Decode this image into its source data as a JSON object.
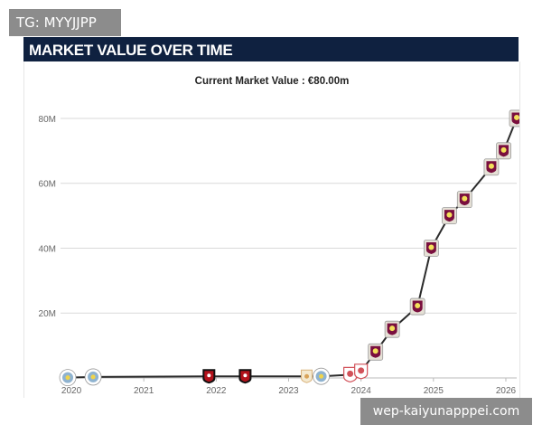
{
  "watermarks": {
    "top_left": "TG: MYYJJPP",
    "bottom_right": "wep-kaiyunapppei.com"
  },
  "header": {
    "title": "MARKET VALUE OVER TIME"
  },
  "colors": {
    "header_bg": "#0f2140",
    "line": "#2b2b2b",
    "grid": "#d9d9d9",
    "villa_badge": "#7a0f3e",
    "villa_accent": "#f3e05a",
    "city_badge": "#8fb3d0",
    "bournemouth_badge": "#b3121b",
    "middlesbrough_badge": "#d2525a"
  },
  "chart_data": {
    "type": "line",
    "title": "Current Market Value : €80.00m",
    "xlabel": "",
    "ylabel": "",
    "xlim": [
      2019.85,
      2026.15
    ],
    "ylim": [
      0,
      85
    ],
    "grid": true,
    "x_ticks": [
      "2020",
      "2021",
      "2022",
      "2023",
      "2024",
      "2025",
      "2026"
    ],
    "y_ticks": [
      {
        "value": 20,
        "label": "20M"
      },
      {
        "value": 40,
        "label": "40M"
      },
      {
        "value": 60,
        "label": "60M"
      },
      {
        "value": 80,
        "label": "80M"
      }
    ],
    "points": [
      {
        "x": 2019.95,
        "y": 0.1,
        "club": "city-badge"
      },
      {
        "x": 2020.3,
        "y": 0.3,
        "club": "city-badge"
      },
      {
        "x": 2021.9,
        "y": 0.5,
        "club": "bournemouth-badge"
      },
      {
        "x": 2022.4,
        "y": 0.5,
        "club": "bournemouth-badge"
      },
      {
        "x": 2023.25,
        "y": 0.5,
        "club": "generic-crest"
      },
      {
        "x": 2023.45,
        "y": 0.5,
        "club": "city-badge"
      },
      {
        "x": 2023.85,
        "y": 1.0,
        "club": "middlesbrough-badge"
      },
      {
        "x": 2024.0,
        "y": 2.0,
        "club": "middlesbrough-badge"
      },
      {
        "x": 2024.2,
        "y": 8.0,
        "club": "villa-badge"
      },
      {
        "x": 2024.43,
        "y": 15.0,
        "club": "villa-badge"
      },
      {
        "x": 2024.78,
        "y": 22.0,
        "club": "villa-badge"
      },
      {
        "x": 2024.97,
        "y": 40.0,
        "club": "villa-badge"
      },
      {
        "x": 2025.22,
        "y": 50.0,
        "club": "villa-badge"
      },
      {
        "x": 2025.43,
        "y": 55.0,
        "club": "villa-badge"
      },
      {
        "x": 2025.8,
        "y": 65.0,
        "club": "villa-badge"
      },
      {
        "x": 2025.97,
        "y": 70.0,
        "club": "villa-badge"
      },
      {
        "x": 2026.15,
        "y": 80.0,
        "club": "villa-badge"
      }
    ]
  }
}
